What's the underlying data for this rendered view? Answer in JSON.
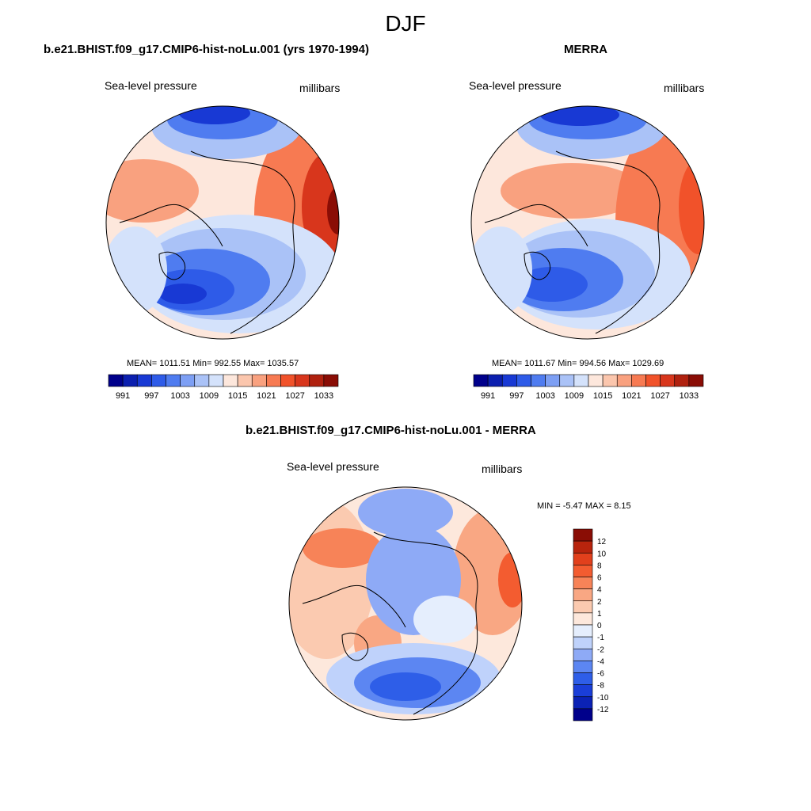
{
  "season_title": "DJF",
  "colors": {
    "abs_scale": [
      "#00008b",
      "#0b1faf",
      "#1839d4",
      "#2e5be8",
      "#4f7cf0",
      "#7d9ff4",
      "#aac2f7",
      "#d4e2fb",
      "#fde7dc",
      "#fbc6ad",
      "#f9a17f",
      "#f77a52",
      "#f1522a",
      "#d8361c",
      "#b0210f",
      "#8a0d05"
    ],
    "diff_scale": [
      "#00008b",
      "#0b22b5",
      "#1a3ed8",
      "#2e5ee8",
      "#5c86f2",
      "#8eaaf6",
      "#bfd2fb",
      "#e5eefd",
      "#fde8dc",
      "#fbcab0",
      "#f9a783",
      "#f78358",
      "#f35c30",
      "#e2401c",
      "#b8240d",
      "#8a0d05"
    ],
    "coastline": "#000000"
  },
  "panels": [
    {
      "id": "model",
      "title": "b.e21.BHIST.f09_g17.CMIP6-hist-noLu.001 (yrs 1970-1994)",
      "variable": "Sea-level pressure",
      "units": "millibars",
      "stats": "MEAN= 1011.51  Min= 992.55  Max= 1035.57",
      "colorbar_labels": [
        "991",
        "997",
        "1003",
        "1009",
        "1015",
        "1021",
        "1027",
        "1033"
      ]
    },
    {
      "id": "obs",
      "title": "MERRA",
      "variable": "Sea-level pressure",
      "units": "millibars",
      "stats": "MEAN= 1011.67  Min= 994.56  Max= 1029.69",
      "colorbar_labels": [
        "991",
        "997",
        "1003",
        "1009",
        "1015",
        "1021",
        "1027",
        "1033"
      ]
    },
    {
      "id": "diff",
      "title": "b.e21.BHIST.f09_g17.CMIP6-hist-noLu.001 - MERRA",
      "variable": "Sea-level pressure",
      "units": "millibars",
      "stats": "MIN =  -5.47 MAX =   8.15",
      "colorbar_labels": [
        "12",
        "10",
        "8",
        "6",
        "4",
        "2",
        "1",
        "0",
        "-1",
        "-2",
        "-4",
        "-6",
        "-8",
        "-10",
        "-12"
      ]
    }
  ]
}
